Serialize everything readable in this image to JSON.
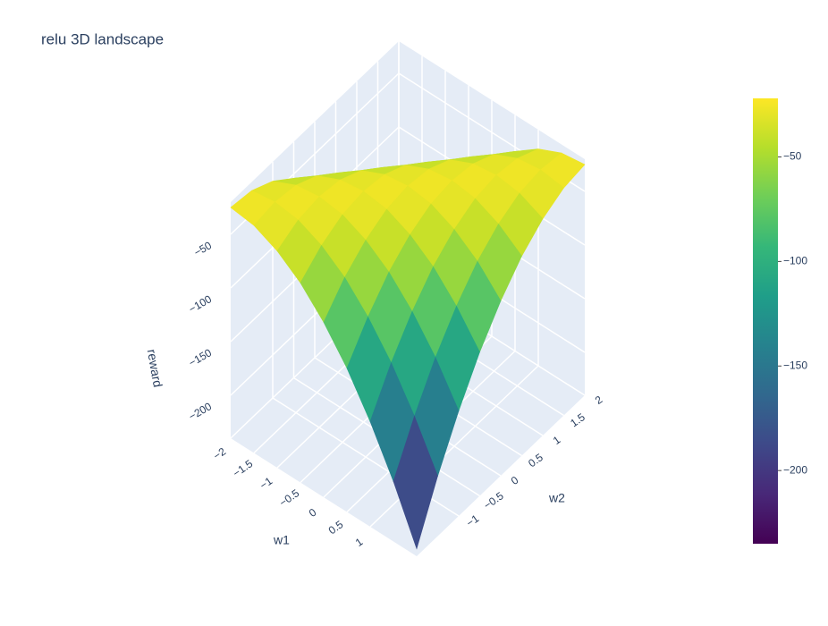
{
  "chart_data": {
    "type": "surface",
    "title": "relu 3D landscape",
    "x_title": "w1",
    "y_title": "w2",
    "z_title": "reward",
    "x": [
      -2,
      -1.5,
      -1,
      -0.5,
      0,
      0.5,
      1,
      1.5,
      2
    ],
    "y": [
      -2,
      -1.5,
      -1,
      -0.5,
      0,
      0.5,
      1,
      1.5,
      2
    ],
    "z": [
      [
        -25,
        -28,
        -38,
        -54,
        -77,
        -106,
        -142,
        -184,
        -233
      ],
      [
        -28,
        -25,
        -28,
        -38,
        -54,
        -77,
        -106,
        -142,
        -184
      ],
      [
        -38,
        -28,
        -25,
        -28,
        -38,
        -54,
        -77,
        -106,
        -142
      ],
      [
        -54,
        -38,
        -28,
        -25,
        -28,
        -38,
        -54,
        -77,
        -106
      ],
      [
        -77,
        -54,
        -38,
        -28,
        -25,
        -28,
        -38,
        -54,
        -77
      ],
      [
        -106,
        -77,
        -54,
        -38,
        -28,
        -25,
        -28,
        -38,
        -54
      ],
      [
        -142,
        -106,
        -77,
        -54,
        -38,
        -28,
        -25,
        -28,
        -38
      ],
      [
        -184,
        -142,
        -106,
        -77,
        -54,
        -38,
        -28,
        -25,
        -28
      ],
      [
        -233,
        -184,
        -142,
        -106,
        -77,
        -54,
        -38,
        -28,
        -25
      ]
    ],
    "xlim": [
      -2,
      2
    ],
    "ylim": [
      -2,
      2
    ],
    "zlim": [
      -240,
      -20
    ],
    "xticks": [
      {
        "value": -2,
        "label": "−2"
      },
      {
        "value": -1.5,
        "label": "−1.5"
      },
      {
        "value": -1,
        "label": "−1"
      },
      {
        "value": -0.5,
        "label": "−0.5"
      },
      0,
      0.5,
      1
    ],
    "yticks": [
      {
        "value": -1,
        "label": "−1"
      },
      {
        "value": -0.5,
        "label": "−0.5"
      },
      0,
      0.5,
      1,
      1.5,
      2
    ],
    "zticks": [
      {
        "value": -50,
        "label": "−50"
      },
      {
        "value": -100,
        "label": "−100"
      },
      {
        "value": -150,
        "label": "−150"
      },
      {
        "value": -200,
        "label": "−200"
      }
    ],
    "colorscale": [
      "#440154",
      "#482878",
      "#3e4989",
      "#31688e",
      "#26828e",
      "#1f9e89",
      "#35b779",
      "#6ece58",
      "#b5de2b",
      "#fde725"
    ],
    "cmin": -235,
    "cmax": -22,
    "colorbar_ticks": [
      {
        "value": -50,
        "label": "−50"
      },
      {
        "value": -100,
        "label": "−100"
      },
      {
        "value": -150,
        "label": "−150"
      },
      {
        "value": -200,
        "label": "−200"
      }
    ]
  }
}
